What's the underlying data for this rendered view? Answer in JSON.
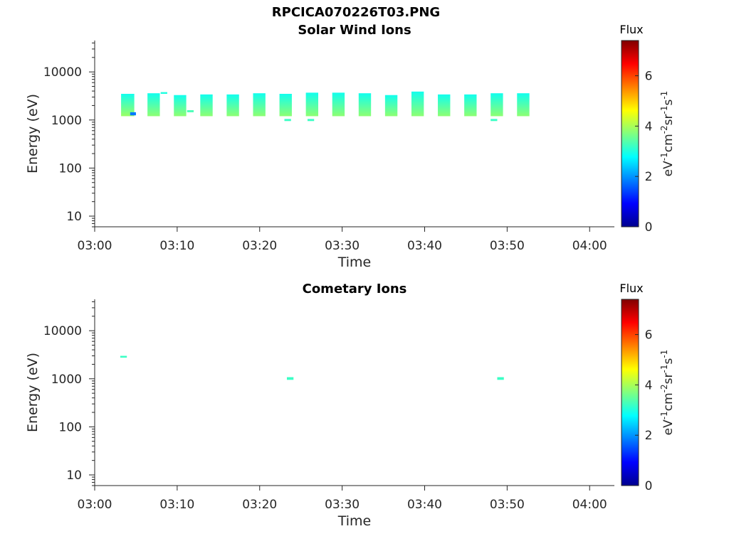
{
  "figure": {
    "title": "RPCICA070226T03.PNG"
  },
  "colors": {
    "colormap": [
      "#00008f",
      "#0000ff",
      "#0080ff",
      "#00ffff",
      "#80ff80",
      "#ffff00",
      "#ff8000",
      "#ff0000",
      "#800000"
    ]
  },
  "chart_data": [
    {
      "type": "heatmap",
      "title": "Solar Wind Ions",
      "xlabel": "Time",
      "ylabel": "Energy (eV)",
      "yscale": "log",
      "xlim": [
        0,
        63
      ],
      "ylim": [
        6,
        45000
      ],
      "xticks": [
        0,
        10,
        20,
        30,
        40,
        50,
        60
      ],
      "xticklabels": [
        "03:00",
        "03:10",
        "03:20",
        "03:30",
        "03:40",
        "03:50",
        "04:00"
      ],
      "yticks": [
        10,
        100,
        1000,
        10000
      ],
      "yticklabels": [
        "10",
        "100",
        "1000",
        "10000"
      ],
      "colorbar": {
        "label": "Flux",
        "units": "eV-1cm-2sr-1s-1",
        "range": [
          0,
          7.4
        ],
        "ticks": [
          0,
          2,
          4,
          6
        ],
        "ticklabels": [
          "0",
          "2",
          "4",
          "6"
        ]
      },
      "blocks": [
        {
          "t0": 3.2,
          "t1": 4.8,
          "e_low": 1200,
          "e_high": 3500,
          "flux_low": 3.9,
          "flux_high": 2.9
        },
        {
          "t0": 6.4,
          "t1": 7.9,
          "e_low": 1200,
          "e_high": 3600,
          "flux_low": 3.8,
          "flux_high": 2.9
        },
        {
          "t0": 9.6,
          "t1": 11.1,
          "e_low": 1200,
          "e_high": 3300,
          "flux_low": 3.8,
          "flux_high": 2.9
        },
        {
          "t0": 12.8,
          "t1": 14.3,
          "e_low": 1200,
          "e_high": 3400,
          "flux_low": 3.8,
          "flux_high": 2.9
        },
        {
          "t0": 16.0,
          "t1": 17.5,
          "e_low": 1200,
          "e_high": 3400,
          "flux_low": 3.8,
          "flux_high": 2.9
        },
        {
          "t0": 19.2,
          "t1": 20.7,
          "e_low": 1200,
          "e_high": 3600,
          "flux_low": 3.8,
          "flux_high": 2.9
        },
        {
          "t0": 22.4,
          "t1": 23.9,
          "e_low": 1200,
          "e_high": 3500,
          "flux_low": 3.8,
          "flux_high": 2.9
        },
        {
          "t0": 25.6,
          "t1": 27.1,
          "e_low": 1200,
          "e_high": 3700,
          "flux_low": 3.8,
          "flux_high": 2.9
        },
        {
          "t0": 28.8,
          "t1": 30.3,
          "e_low": 1200,
          "e_high": 3700,
          "flux_low": 3.8,
          "flux_high": 2.9
        },
        {
          "t0": 32.0,
          "t1": 33.5,
          "e_low": 1200,
          "e_high": 3600,
          "flux_low": 3.8,
          "flux_high": 2.9
        },
        {
          "t0": 35.2,
          "t1": 36.7,
          "e_low": 1200,
          "e_high": 3300,
          "flux_low": 3.8,
          "flux_high": 2.9
        },
        {
          "t0": 38.4,
          "t1": 39.9,
          "e_low": 1200,
          "e_high": 3900,
          "flux_low": 3.8,
          "flux_high": 2.9
        },
        {
          "t0": 41.6,
          "t1": 43.1,
          "e_low": 1200,
          "e_high": 3400,
          "flux_low": 3.8,
          "flux_high": 2.9
        },
        {
          "t0": 44.8,
          "t1": 46.3,
          "e_low": 1200,
          "e_high": 3400,
          "flux_low": 3.8,
          "flux_high": 2.9
        },
        {
          "t0": 48.0,
          "t1": 49.5,
          "e_low": 1200,
          "e_high": 3600,
          "flux_low": 3.8,
          "flux_high": 2.9
        },
        {
          "t0": 51.2,
          "t1": 52.7,
          "e_low": 1200,
          "e_high": 3600,
          "flux_low": 3.8,
          "flux_high": 2.9
        }
      ],
      "patches": [
        {
          "t0": 4.3,
          "t1": 5.0,
          "e_low": 1250,
          "e_high": 1450,
          "flux": 1.8
        },
        {
          "t0": 8.0,
          "t1": 8.8,
          "e_low": 3500,
          "e_high": 3800,
          "flux": 3.0
        },
        {
          "t0": 11.2,
          "t1": 12.0,
          "e_low": 1450,
          "e_high": 1600,
          "flux": 3.3
        },
        {
          "t0": 23.0,
          "t1": 23.8,
          "e_low": 950,
          "e_high": 1050,
          "flux": 3.2
        },
        {
          "t0": 25.8,
          "t1": 26.6,
          "e_low": 950,
          "e_high": 1050,
          "flux": 3.2
        },
        {
          "t0": 48.0,
          "t1": 48.8,
          "e_low": 950,
          "e_high": 1050,
          "flux": 3.2
        }
      ]
    },
    {
      "type": "heatmap",
      "title": "Cometary Ions",
      "xlabel": "Time",
      "ylabel": "Energy (eV)",
      "yscale": "log",
      "xlim": [
        0,
        63
      ],
      "ylim": [
        6,
        45000
      ],
      "xticks": [
        0,
        10,
        20,
        30,
        40,
        50,
        60
      ],
      "xticklabels": [
        "03:00",
        "03:10",
        "03:20",
        "03:30",
        "03:40",
        "03:50",
        "04:00"
      ],
      "yticks": [
        10,
        100,
        1000,
        10000
      ],
      "yticklabels": [
        "10",
        "100",
        "1000",
        "10000"
      ],
      "colorbar": {
        "label": "Flux",
        "units": "eV-1cm-2sr-1s-1",
        "range": [
          0,
          7.4
        ],
        "ticks": [
          0,
          2,
          4,
          6
        ],
        "ticklabels": [
          "0",
          "2",
          "4",
          "6"
        ]
      },
      "blocks": [],
      "patches": [
        {
          "t0": 3.1,
          "t1": 3.9,
          "e_low": 2750,
          "e_high": 3000,
          "flux": 3.2
        },
        {
          "t0": 23.3,
          "t1": 24.1,
          "e_low": 950,
          "e_high": 1080,
          "flux": 3.2
        },
        {
          "t0": 48.8,
          "t1": 49.6,
          "e_low": 950,
          "e_high": 1080,
          "flux": 3.2
        }
      ]
    }
  ]
}
